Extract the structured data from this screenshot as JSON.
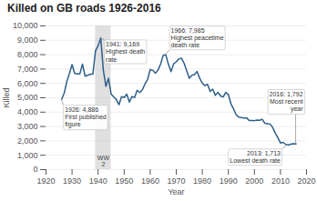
{
  "chart_data": {
    "type": "line",
    "title": "Killed on GB roads 1926-2016",
    "x_label": "Year",
    "y_label": "Killed",
    "color": "#2e5f8a",
    "grid": true,
    "xlim": [
      1920,
      2020
    ],
    "ylim": [
      0,
      10000
    ],
    "xticks": [
      1920,
      1930,
      1940,
      1950,
      1960,
      1970,
      1980,
      1990,
      2000,
      2010,
      2020
    ],
    "yticks": [
      0,
      {
        "value": 1000,
        "label": "1,000"
      },
      {
        "value": 2000,
        "label": "2,000"
      },
      {
        "value": 3000,
        "label": "3,000"
      },
      {
        "value": 4000,
        "label": "4,000"
      },
      {
        "value": 5000,
        "label": "5,000"
      },
      {
        "value": 6000,
        "label": "6,000"
      },
      {
        "value": 7000,
        "label": "7,000"
      },
      {
        "value": 8000,
        "label": "8,000"
      },
      {
        "value": 9000,
        "label": "9,000"
      },
      {
        "value": 10000,
        "label": "10,000"
      }
    ],
    "x": [
      1926,
      1927,
      1928,
      1929,
      1930,
      1931,
      1932,
      1933,
      1934,
      1935,
      1936,
      1937,
      1938,
      1939,
      1940,
      1941,
      1942,
      1943,
      1944,
      1945,
      1946,
      1947,
      1948,
      1949,
      1950,
      1951,
      1952,
      1953,
      1954,
      1955,
      1956,
      1957,
      1958,
      1959,
      1960,
      1961,
      1962,
      1963,
      1964,
      1965,
      1966,
      1967,
      1968,
      1969,
      1970,
      1971,
      1972,
      1973,
      1974,
      1975,
      1976,
      1977,
      1978,
      1979,
      1980,
      1981,
      1982,
      1983,
      1984,
      1985,
      1986,
      1987,
      1988,
      1989,
      1990,
      1991,
      1992,
      1993,
      1994,
      1995,
      1996,
      1997,
      1998,
      1999,
      2000,
      2001,
      2002,
      2003,
      2004,
      2005,
      2006,
      2007,
      2008,
      2009,
      2010,
      2011,
      2012,
      2013,
      2014,
      2015,
      2016
    ],
    "values": [
      4886,
      5329,
      6138,
      6696,
      7305,
      6691,
      6667,
      6667,
      7343,
      6502,
      6561,
      6648,
      6648,
      8272,
      8609,
      9169,
      6926,
      5796,
      6358,
      5256,
      5062,
      4881,
      4513,
      5085,
      5012,
      5250,
      4706,
      5090,
      5010,
      5526,
      5367,
      5550,
      5970,
      6280,
      6970,
      6908,
      6709,
      6922,
      7355,
      7952,
      7985,
      7319,
      6825,
      7365,
      7499,
      7699,
      7763,
      7406,
      6876,
      6366,
      6570,
      6614,
      6831,
      6352,
      6010,
      5846,
      5934,
      5445,
      5599,
      5165,
      5382,
      5125,
      5052,
      5373,
      5217,
      4568,
      4229,
      3814,
      3650,
      3621,
      3598,
      3599,
      3421,
      3423,
      3409,
      3450,
      3431,
      3508,
      3221,
      3201,
      3172,
      2946,
      2538,
      2222,
      1857,
      1901,
      1754,
      1713,
      1775,
      1804,
      1792
    ],
    "annotations": [
      {
        "text": "WW\n2",
        "x_start": 1939,
        "x_end": 1945,
        "color": "#cccccc"
      },
      {
        "text": "1926: 4,886\nFirst published\nfigure",
        "x": 1926,
        "y": 4886
      },
      {
        "text": "1941: 9,169\nHighest death\nrate",
        "x": 1941,
        "y": 9169
      },
      {
        "text": "1966: 7,985\nHighest peacetime\ndeath rate",
        "x": 1966,
        "y": 7985
      },
      {
        "text": "2016: 1,792\nMost recent\nyear",
        "x": 2016,
        "y": 1792
      },
      {
        "text": "2013: 1,713\nLowest death rate",
        "x": 2013,
        "y": 1713
      }
    ]
  }
}
